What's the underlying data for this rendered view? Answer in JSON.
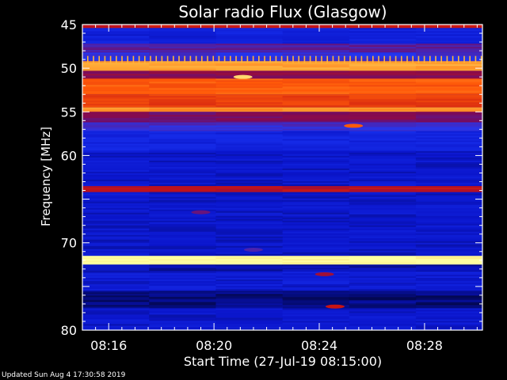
{
  "chart_data": {
    "type": "heatmap",
    "title": "Solar radio Flux (Glasgow)",
    "xlabel": "Start Time (27-Jul-19 08:15:00)",
    "ylabel": "Frequency [MHz]",
    "x_ticks": [
      "08:16",
      "08:20",
      "08:24",
      "08:28"
    ],
    "x_tick_minutes": [
      1,
      5,
      9,
      13
    ],
    "x_range_minutes_after_start": [
      0,
      15.2
    ],
    "y_ticks": [
      45,
      50,
      55,
      60,
      70,
      80
    ],
    "y_range": [
      45,
      80
    ],
    "colorscale": [
      "#000000",
      "#0a14c8",
      "#1e3cff",
      "#7a0a5a",
      "#c81414",
      "#ff5a0a",
      "#ffb43c",
      "#ffffa0"
    ],
    "bands": [
      {
        "from": 45,
        "to": 45.4,
        "level": 4
      },
      {
        "from": 45.4,
        "to": 47.2,
        "level": 1.3
      },
      {
        "from": 47.2,
        "to": 48.2,
        "level": 2.6
      },
      {
        "from": 48.2,
        "to": 49.2,
        "level": 2.2
      },
      {
        "from": 49.2,
        "to": 50.3,
        "level": 5.8
      },
      {
        "from": 50.3,
        "to": 51.2,
        "level": 3.2
      },
      {
        "from": 51.2,
        "to": 53.0,
        "level": 5.0
      },
      {
        "from": 53.0,
        "to": 54.5,
        "level": 4.6
      },
      {
        "from": 54.5,
        "to": 55.0,
        "level": 5.6
      },
      {
        "from": 55.0,
        "to": 56.2,
        "level": 3.0
      },
      {
        "from": 56.2,
        "to": 57.2,
        "level": 2.3
      },
      {
        "from": 57.2,
        "to": 59.5,
        "level": 1.4
      },
      {
        "from": 59.5,
        "to": 63.5,
        "level": 1.1
      },
      {
        "from": 63.5,
        "to": 64.2,
        "level": 3.8
      },
      {
        "from": 64.2,
        "to": 71.5,
        "level": 1.1
      },
      {
        "from": 71.5,
        "to": 72.5,
        "level": 7.0
      },
      {
        "from": 72.5,
        "to": 73.3,
        "level": 0.9
      },
      {
        "from": 73.3,
        "to": 75.5,
        "level": 1.2
      },
      {
        "from": 75.5,
        "to": 77.5,
        "level": 0.6
      },
      {
        "from": 77.5,
        "to": 80.0,
        "level": 1.1
      }
    ],
    "spots": [
      {
        "minute": 10.3,
        "freq": 56.6,
        "level": 5.0
      },
      {
        "minute": 9.6,
        "freq": 77.3,
        "level": 4.0
      },
      {
        "minute": 9.2,
        "freq": 73.6,
        "level": 3.5
      },
      {
        "minute": 6.1,
        "freq": 51.0,
        "level": 6.5
      },
      {
        "minute": 4.5,
        "freq": 66.5,
        "level": 2.8
      },
      {
        "minute": 6.5,
        "freq": 70.8,
        "level": 2.5
      }
    ]
  },
  "footer": "Updated Sun Aug  4 17:30:58 2019"
}
